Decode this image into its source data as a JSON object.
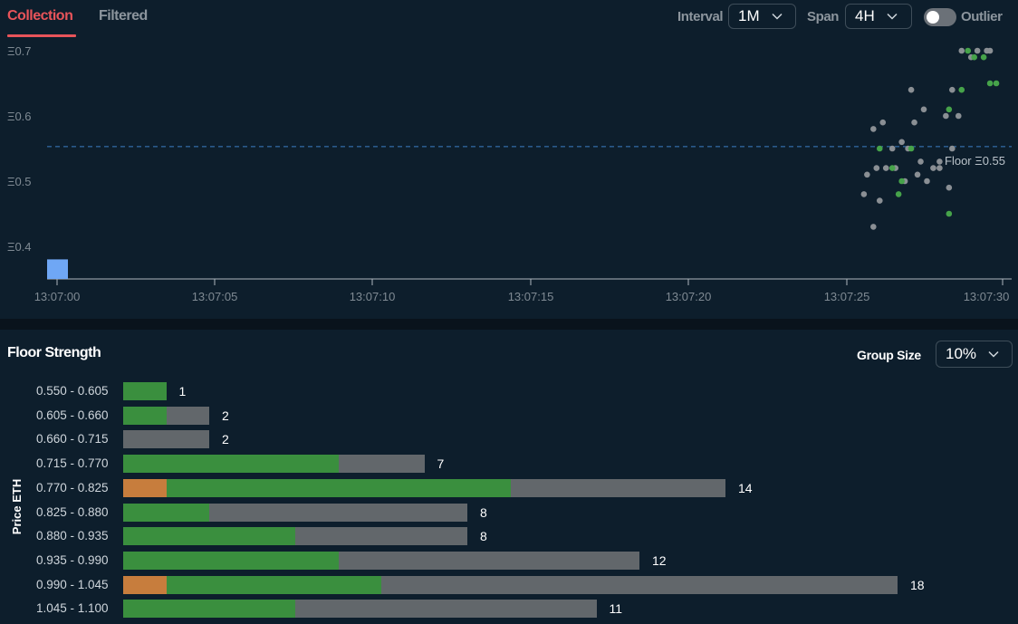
{
  "tabs": {
    "collection": "Collection",
    "filtered": "Filtered"
  },
  "controls": {
    "interval_label": "Interval",
    "interval_value": "1M",
    "span_label": "Span",
    "span_value": "4H",
    "outlier_label": "Outlier",
    "outlier_on": false
  },
  "chart_data": {
    "type": "scatter",
    "y_ticks": [
      "Ξ0.7",
      "Ξ0.6",
      "Ξ0.5",
      "Ξ0.4"
    ],
    "x_ticks": [
      "13:07:00",
      "13:07:05",
      "13:07:10",
      "13:07:15",
      "13:07:20",
      "13:07:25",
      "13:07:30"
    ],
    "floor_label": "Floor Ξ0.55",
    "floor_value": 0.553,
    "volume_bar": {
      "x": 0.2,
      "y": 0.38
    },
    "series": [
      {
        "color": "#8a8f94",
        "points": [
          [
            26.1,
            0.47
          ],
          [
            25.6,
            0.48
          ],
          [
            25.7,
            0.51
          ],
          [
            25.9,
            0.43
          ],
          [
            26.0,
            0.52
          ],
          [
            26.3,
            0.52
          ],
          [
            26.6,
            0.52
          ],
          [
            26.5,
            0.55
          ],
          [
            26.8,
            0.56
          ],
          [
            27.0,
            0.55
          ],
          [
            26.9,
            0.5
          ],
          [
            27.3,
            0.51
          ],
          [
            27.4,
            0.53
          ],
          [
            27.6,
            0.5
          ],
          [
            27.2,
            0.59
          ],
          [
            27.5,
            0.61
          ],
          [
            27.8,
            0.52
          ],
          [
            28.0,
            0.53
          ],
          [
            28.2,
            0.6
          ],
          [
            28.6,
            0.6
          ],
          [
            28.4,
            0.55
          ],
          [
            27.1,
            0.64
          ],
          [
            28.4,
            0.64
          ],
          [
            28.3,
            0.49
          ],
          [
            25.9,
            0.58
          ],
          [
            26.2,
            0.59
          ],
          [
            28.0,
            0.52
          ],
          [
            28.7,
            0.7
          ],
          [
            29.0,
            0.69
          ],
          [
            29.2,
            0.7
          ],
          [
            29.5,
            0.7
          ],
          [
            29.6,
            0.7
          ]
        ]
      },
      {
        "color": "#46a34a",
        "points": [
          [
            26.1,
            0.55
          ],
          [
            26.5,
            0.52
          ],
          [
            27.1,
            0.55
          ],
          [
            26.8,
            0.5
          ],
          [
            26.7,
            0.48
          ],
          [
            28.3,
            0.61
          ],
          [
            28.7,
            0.64
          ],
          [
            28.3,
            0.45
          ],
          [
            29.1,
            0.69
          ],
          [
            28.9,
            0.7
          ],
          [
            29.4,
            0.69
          ],
          [
            29.6,
            0.65
          ],
          [
            29.8,
            0.65
          ]
        ]
      }
    ]
  },
  "floor_strength": {
    "title": "Floor Strength",
    "group_size_label": "Group Size",
    "group_size_value": "10%",
    "y_axis_title": "Price ETH",
    "rows": [
      {
        "range": "0.550 - 0.605",
        "count": 1,
        "orange": 0,
        "green": 1,
        "gray": 0
      },
      {
        "range": "0.605 - 0.660",
        "count": 2,
        "orange": 0,
        "green": 1,
        "gray": 1
      },
      {
        "range": "0.660 - 0.715",
        "count": 2,
        "orange": 0,
        "green": 0,
        "gray": 2
      },
      {
        "range": "0.715 - 0.770",
        "count": 7,
        "orange": 0,
        "green": 5,
        "gray": 2
      },
      {
        "range": "0.770 - 0.825",
        "count": 14,
        "orange": 1,
        "green": 8,
        "gray": 5
      },
      {
        "range": "0.825 - 0.880",
        "count": 8,
        "orange": 0,
        "green": 2,
        "gray": 6
      },
      {
        "range": "0.880 - 0.935",
        "count": 8,
        "orange": 0,
        "green": 4,
        "gray": 4
      },
      {
        "range": "0.935 - 0.990",
        "count": 12,
        "orange": 0,
        "green": 5,
        "gray": 7
      },
      {
        "range": "0.990 - 1.045",
        "count": 18,
        "orange": 1,
        "green": 5,
        "gray": 12
      },
      {
        "range": "1.045 - 1.100",
        "count": 11,
        "orange": 0,
        "green": 4,
        "gray": 7
      }
    ]
  }
}
